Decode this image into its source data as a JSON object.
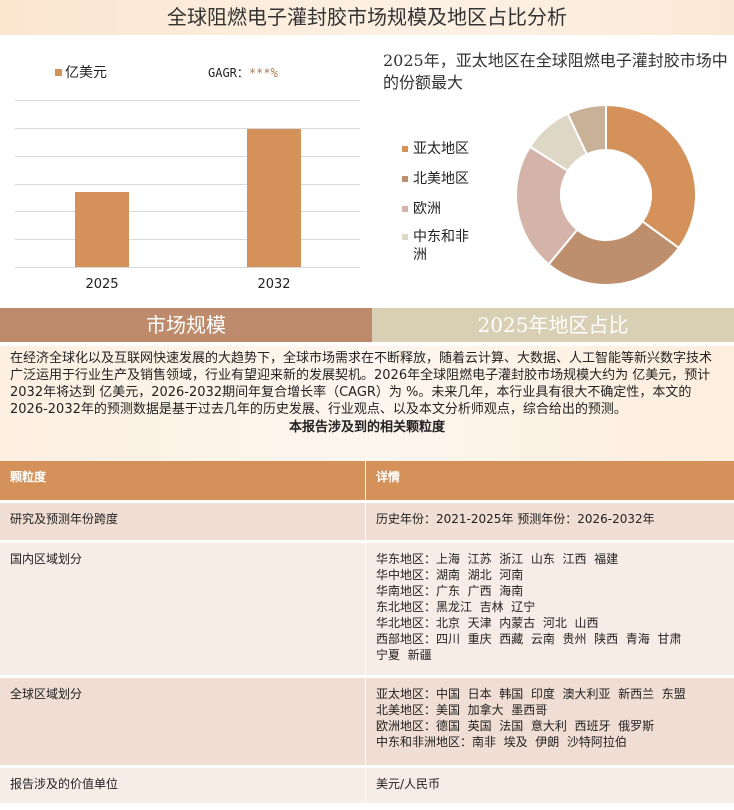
{
  "title": "全球阻燃电子灌封胶市场规模及地区占比分析",
  "bar_chart": {
    "legend": "亿美元",
    "gagr_label": "GAGR：",
    "gagr_value": "***%",
    "categories": [
      "2025",
      "2032"
    ],
    "values": [
      2.7,
      4.95
    ],
    "ylim": [
      0,
      6
    ],
    "grid": true,
    "color": "#d4915a"
  },
  "pie_chart": {
    "title": "2025年，亚太地区在全球阻燃电子灌封胶市场中的份额最大",
    "type": "donut",
    "slices": [
      {
        "name": "亚太地区",
        "value": 35,
        "color": "#d4915a"
      },
      {
        "name": "北美地区",
        "value": 26,
        "color": "#bd8f6d"
      },
      {
        "name": "欧洲",
        "value": 23,
        "color": "#d4b4a8"
      },
      {
        "name": "中东和非洲",
        "value": 9,
        "color": "#dfd7c6"
      },
      {
        "value": 7,
        "color": "#c8b196"
      }
    ]
  },
  "bands": {
    "left": "市场规模",
    "right": "2025年地区占比"
  },
  "paragraph": "在经济全球化以及互联网快速发展的大趋势下，全球市场需求在不断释放，随着云计算、大数据、人工智能等新兴数字技术广泛运用于行业生产及销售领域，行业有望迎来新的发展契机。2026年全球阻燃电子灌封胶市场规模大约为 亿美元，预计2032年将达到 亿美元，2026-2032期间年复合增长率（CAGR）为 %。未来几年，本行业具有很大不确定性，本文的2026-2032年的预测数据是基于过去几年的历史发展、行业观点、以及本文分析师观点，综合给出的预测。",
  "table": {
    "caption": "本报告涉及到的相关颗粒度",
    "headers": [
      "颗粒度",
      "详情"
    ],
    "rows": [
      {
        "name": "研究及预测年份跨度",
        "detail": [
          "历史年份：2021-2025年 预测年份：2026-2032年"
        ]
      },
      {
        "name": "国内区域划分",
        "detail": [
          "华东地区：上海  江苏  浙江  山东  江西  福建",
          "华中地区：湖南  湖北  河南",
          "华南地区：广东  广西  海南",
          "东北地区：黑龙江  吉林  辽宁",
          "华北地区：北京  天津  内蒙古  河北  山西",
          "西部地区：四川  重庆  西藏  云南  贵州  陕西  青海  甘肃",
          "宁夏  新疆"
        ]
      },
      {
        "name": "全球区域划分",
        "detail": [
          "亚太地区：中国  日本  韩国  印度  澳大利亚  新西兰  东盟",
          "北美地区：美国  加拿大  墨西哥",
          "欧洲地区：德国  英国  法国  意大利  西班牙  俄罗斯",
          "中东和非洲地区：南非  埃及  伊朗  沙特阿拉伯"
        ]
      },
      {
        "name": "报告涉及的价值单位",
        "detail": [
          "美元/人民币"
        ]
      }
    ]
  }
}
